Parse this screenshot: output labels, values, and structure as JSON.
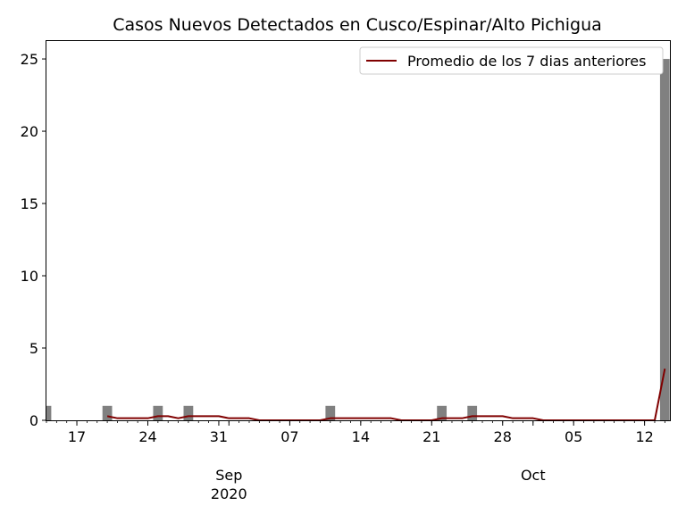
{
  "chart_data": {
    "type": "bar",
    "title": "Casos Nuevos Detectados en Cusco/Espinar/Alto Pichigua",
    "xlabel": "",
    "ylabel": "",
    "x_start": "2020-08-14",
    "x_end": "2020-10-14",
    "ylim": [
      0,
      26.3
    ],
    "yticks": [
      0,
      5,
      10,
      15,
      20,
      25
    ],
    "xticks": [
      {
        "date": "2020-08-17",
        "label": "17"
      },
      {
        "date": "2020-08-24",
        "label": "24"
      },
      {
        "date": "2020-08-31",
        "label": "31"
      },
      {
        "date": "2020-09-07",
        "label": "07"
      },
      {
        "date": "2020-09-14",
        "label": "14"
      },
      {
        "date": "2020-09-21",
        "label": "21"
      },
      {
        "date": "2020-09-28",
        "label": "28"
      },
      {
        "date": "2020-10-05",
        "label": "05"
      },
      {
        "date": "2020-10-12",
        "label": "12"
      }
    ],
    "month_labels": [
      {
        "date": "2020-09-01",
        "label": "Sep",
        "sublabel": "2020"
      },
      {
        "date": "2020-10-01",
        "label": "Oct",
        "sublabel": ""
      }
    ],
    "bars": {
      "color": "#808080",
      "points": [
        {
          "date": "2020-08-14",
          "value": 1
        },
        {
          "date": "2020-08-20",
          "value": 1
        },
        {
          "date": "2020-08-25",
          "value": 1
        },
        {
          "date": "2020-08-28",
          "value": 1
        },
        {
          "date": "2020-09-11",
          "value": 1
        },
        {
          "date": "2020-09-22",
          "value": 1
        },
        {
          "date": "2020-09-25",
          "value": 1
        },
        {
          "date": "2020-10-14",
          "value": 25
        }
      ]
    },
    "series": [
      {
        "name": "Promedio de los 7 dias anteriores",
        "color": "#800000",
        "points": [
          {
            "date": "2020-08-20",
            "value": 0.286
          },
          {
            "date": "2020-08-21",
            "value": 0.143
          },
          {
            "date": "2020-08-22",
            "value": 0.143
          },
          {
            "date": "2020-08-23",
            "value": 0.143
          },
          {
            "date": "2020-08-24",
            "value": 0.143
          },
          {
            "date": "2020-08-25",
            "value": 0.286
          },
          {
            "date": "2020-08-26",
            "value": 0.286
          },
          {
            "date": "2020-08-27",
            "value": 0.143
          },
          {
            "date": "2020-08-28",
            "value": 0.286
          },
          {
            "date": "2020-08-29",
            "value": 0.286
          },
          {
            "date": "2020-08-30",
            "value": 0.286
          },
          {
            "date": "2020-08-31",
            "value": 0.286
          },
          {
            "date": "2020-09-01",
            "value": 0.143
          },
          {
            "date": "2020-09-02",
            "value": 0.143
          },
          {
            "date": "2020-09-03",
            "value": 0.143
          },
          {
            "date": "2020-09-04",
            "value": 0
          },
          {
            "date": "2020-09-10",
            "value": 0
          },
          {
            "date": "2020-09-11",
            "value": 0.143
          },
          {
            "date": "2020-09-17",
            "value": 0.143
          },
          {
            "date": "2020-09-18",
            "value": 0
          },
          {
            "date": "2020-09-21",
            "value": 0
          },
          {
            "date": "2020-09-22",
            "value": 0.143
          },
          {
            "date": "2020-09-24",
            "value": 0.143
          },
          {
            "date": "2020-09-25",
            "value": 0.286
          },
          {
            "date": "2020-09-28",
            "value": 0.286
          },
          {
            "date": "2020-09-29",
            "value": 0.143
          },
          {
            "date": "2020-10-01",
            "value": 0.143
          },
          {
            "date": "2020-10-02",
            "value": 0
          },
          {
            "date": "2020-10-13",
            "value": 0
          },
          {
            "date": "2020-10-14",
            "value": 3.571
          }
        ]
      }
    ],
    "legend": {
      "position": "top-right",
      "label": "Promedio de los 7 dias anteriores"
    },
    "grid": false
  }
}
